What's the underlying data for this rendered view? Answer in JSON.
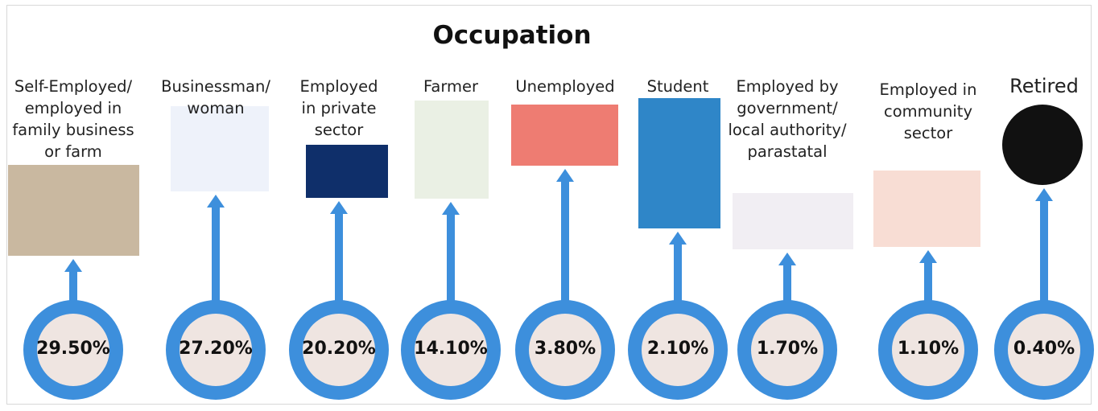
{
  "chart_data": {
    "type": "infographic",
    "title": "Occupation",
    "categories": [
      "Self-Employed/ employed in family business or farm",
      "Businessman/ woman",
      "Employed in private sector",
      "Farmer",
      "Unemployed",
      "Student",
      "Employed by government/ local authority/ parastatal",
      "Employed in community sector",
      "Retired"
    ],
    "values": [
      29.5,
      27.2,
      20.2,
      14.1,
      3.8,
      2.1,
      1.7,
      1.1,
      0.4
    ],
    "value_labels": [
      "29.50%",
      "27.20%",
      "20.20%",
      "14.10%",
      "3.80%",
      "2.10%",
      "1.70%",
      "1.10%",
      "0.40%"
    ],
    "color": "#3d8fdc"
  }
}
